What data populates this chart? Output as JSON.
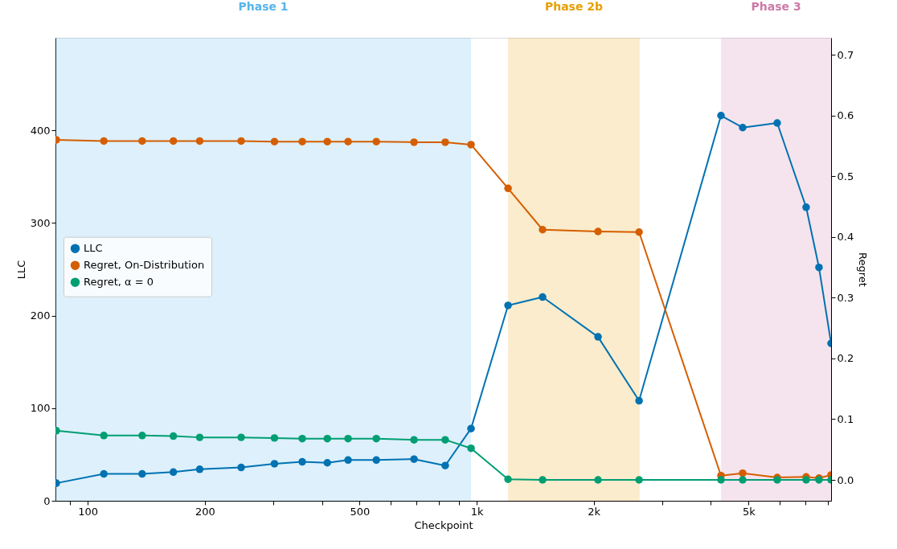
{
  "chart_data": {
    "type": "line",
    "xlabel": "Checkpoint",
    "ylabel": "LLC",
    "y2label": "Regret",
    "x": [
      83,
      110,
      138,
      166,
      194,
      248,
      302,
      356,
      413,
      467,
      552,
      690,
      830,
      967,
      1204,
      1477,
      2051,
      2615,
      4247,
      4829,
      5925,
      7031,
      7586,
      8150
    ],
    "series": [
      {
        "name": "LLC",
        "color": "#0072b2",
        "values": [
          19,
          29,
          29,
          31,
          34,
          36,
          40,
          42,
          41,
          44,
          44,
          45,
          38,
          78,
          211,
          220,
          177,
          108,
          416,
          403,
          408,
          317,
          252,
          170
        ]
      },
      {
        "name": "Regret, On-Distribution",
        "color": "#d55e00",
        "axis": "y2",
        "values": [
          0.56,
          0.558,
          0.558,
          0.558,
          0.558,
          0.558,
          0.557,
          0.557,
          0.557,
          0.557,
          0.557,
          0.556,
          0.556,
          0.552,
          0.48,
          0.412,
          0.409,
          0.408,
          0.007,
          0.011,
          0.004,
          0.005,
          0.003,
          0.008
        ]
      },
      {
        "name": "Regret, α = 0",
        "color": "#009e73",
        "axis": "y2",
        "values": [
          0.081,
          0.073,
          0.073,
          0.072,
          0.07,
          0.07,
          0.069,
          0.068,
          0.068,
          0.068,
          0.068,
          0.066,
          0.066,
          0.052,
          0.001,
          0,
          0,
          0,
          0,
          0,
          0,
          0,
          0,
          0
        ]
      }
    ],
    "log": "x",
    "marker": "circle",
    "line_style": "solid",
    "grid": false,
    "legend": "center left",
    "xlim": [
      82.6,
      8150
    ],
    "ylim": [
      0,
      500
    ],
    "y2lim": [
      -0.0344,
      0.728
    ],
    "xticks": [
      {
        "value": 90,
        "label": null
      },
      {
        "value": 100,
        "label": "100"
      },
      200,
      {
        "value": 300,
        "label": null
      },
      {
        "value": 400,
        "label": null
      },
      500,
      {
        "value": 600,
        "label": null
      },
      {
        "value": 700,
        "label": null
      },
      {
        "value": 800,
        "label": null
      },
      {
        "value": 900,
        "label": null
      },
      {
        "value": 1000,
        "label": "1k"
      },
      {
        "value": 2000,
        "label": "2k"
      },
      {
        "value": 3000,
        "label": null
      },
      {
        "value": 4000,
        "label": null
      },
      {
        "value": 5000,
        "label": "5k"
      },
      {
        "value": 6000,
        "label": null
      },
      {
        "value": 7000,
        "label": null
      },
      {
        "value": 8000,
        "label": null
      }
    ],
    "yticks": [
      0,
      100,
      200,
      300,
      400
    ],
    "y2ticks": [
      {
        "value": 0,
        "label": "0.0"
      },
      0.1,
      0.2,
      0.3,
      0.4,
      0.5,
      0.6,
      0.7
    ],
    "bands": [
      {
        "axis": "x",
        "from": 82.6,
        "to": 967,
        "label": "Phase 1",
        "color": "#56b4e9"
      },
      {
        "axis": "x",
        "from": 1204,
        "to": 2624,
        "label": "Phase 2b",
        "color": "#e69f00"
      },
      {
        "axis": "x",
        "from": 4250,
        "to": 8150,
        "label": "Phase 3",
        "color": "#cc79a7"
      }
    ]
  }
}
